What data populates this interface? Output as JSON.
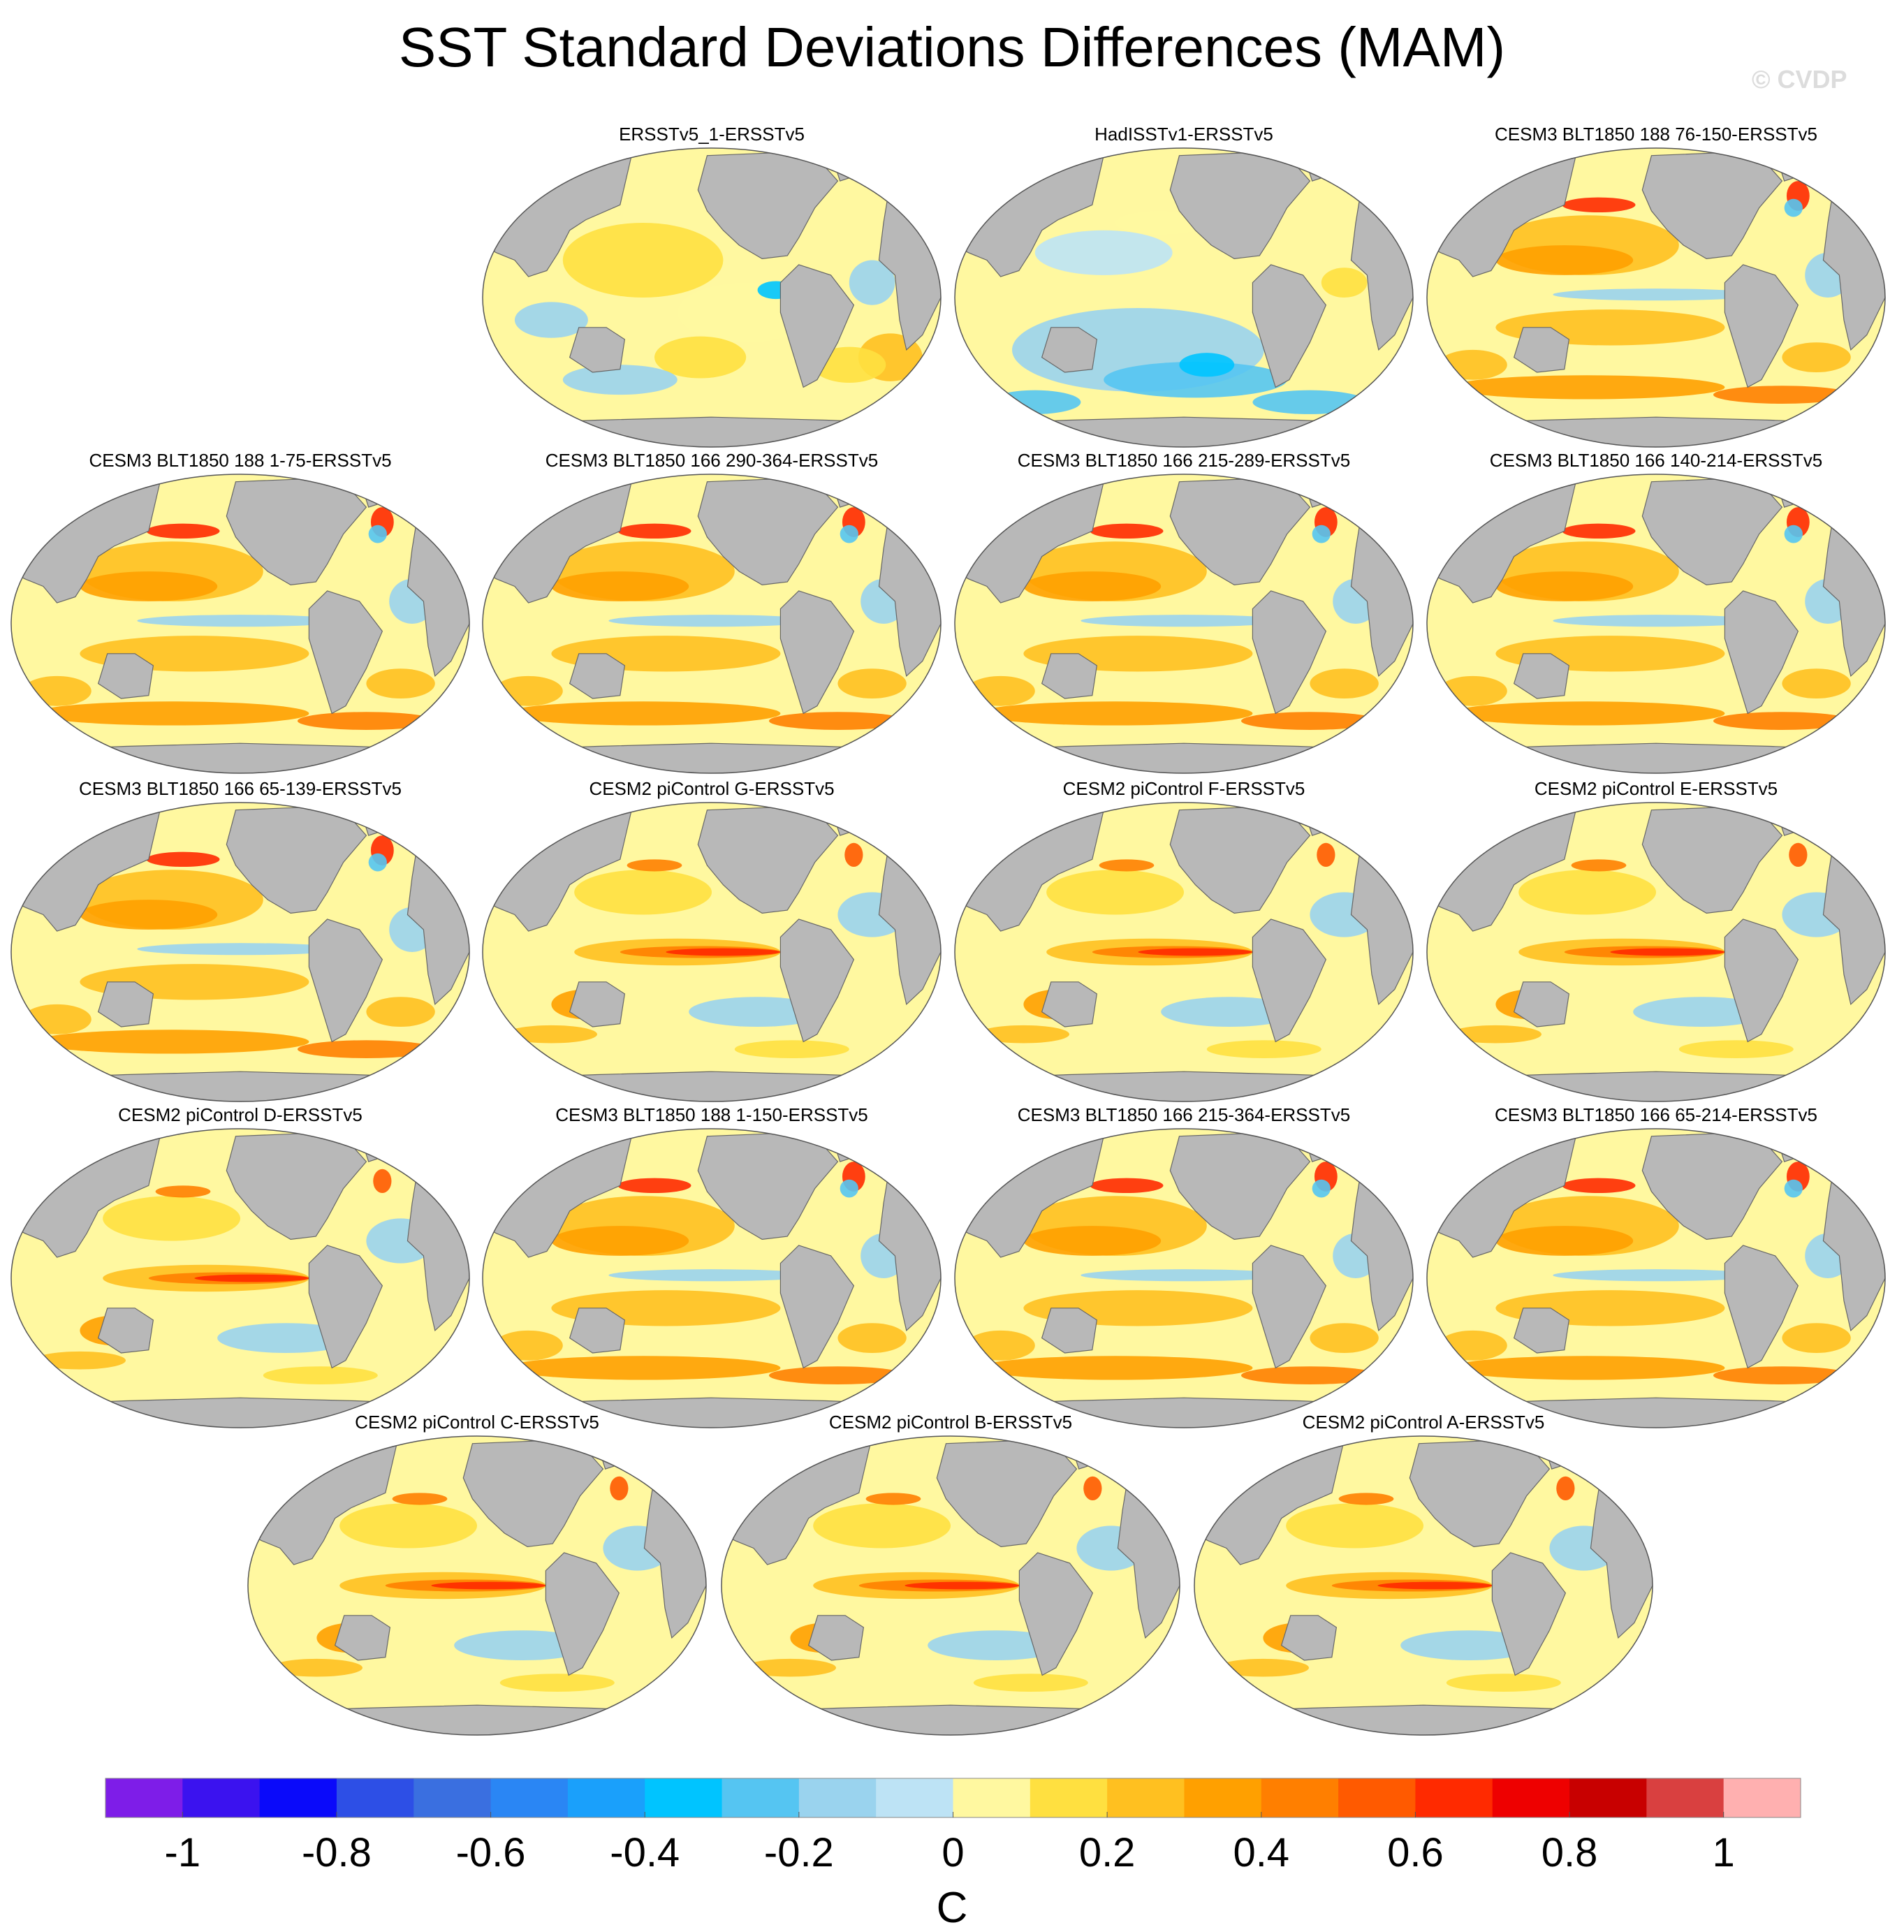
{
  "title": "SST Standard Deviations Differences (MAM)",
  "watermark": "© CVDP",
  "chart_data": {
    "type": "heatmap",
    "title": "SST Standard Deviations Differences (MAM)",
    "projection": "Robinson global map, Pacific-centered",
    "panels": [
      {
        "title": "ERSSTv5_1-ERSSTv5",
        "pattern": "weak"
      },
      {
        "title": "HadISSTv1-ERSSTv5",
        "pattern": "negative"
      },
      {
        "title": "CESM3 BLT1850 188 76-150-ERSSTv5",
        "pattern": "cesm3"
      },
      {
        "title": "CESM3 BLT1850 188 1-75-ERSSTv5",
        "pattern": "cesm3"
      },
      {
        "title": "CESM3 BLT1850 166 290-364-ERSSTv5",
        "pattern": "cesm3"
      },
      {
        "title": "CESM3 BLT1850 166 215-289-ERSSTv5",
        "pattern": "cesm3"
      },
      {
        "title": "CESM3 BLT1850 166 140-214-ERSSTv5",
        "pattern": "cesm3"
      },
      {
        "title": "CESM3 BLT1850 166 65-139-ERSSTv5",
        "pattern": "cesm3"
      },
      {
        "title": "CESM2 piControl G-ERSSTv5",
        "pattern": "cesm2"
      },
      {
        "title": "CESM2 piControl F-ERSSTv5",
        "pattern": "cesm2"
      },
      {
        "title": "CESM2 piControl E-ERSSTv5",
        "pattern": "cesm2"
      },
      {
        "title": "CESM2 piControl D-ERSSTv5",
        "pattern": "cesm2"
      },
      {
        "title": "CESM3 BLT1850 188 1-150-ERSSTv5",
        "pattern": "cesm3"
      },
      {
        "title": "CESM3 BLT1850 166 215-364-ERSSTv5",
        "pattern": "cesm3"
      },
      {
        "title": "CESM3 BLT1850 166 65-214-ERSSTv5",
        "pattern": "cesm3"
      },
      {
        "title": "CESM2 piControl C-ERSSTv5",
        "pattern": "cesm2"
      },
      {
        "title": "CESM2 piControl B-ERSSTv5",
        "pattern": "cesm2"
      },
      {
        "title": "CESM2 piControl A-ERSSTv5",
        "pattern": "cesm2"
      }
    ],
    "colorbar": {
      "label": "C",
      "levels": [
        -1,
        -0.9,
        -0.8,
        -0.7,
        -0.6,
        -0.5,
        -0.4,
        -0.3,
        -0.2,
        -0.1,
        0,
        0.1,
        0.2,
        0.3,
        0.4,
        0.5,
        0.6,
        0.7,
        0.8,
        0.9,
        1
      ],
      "tick_labels": [
        "-1",
        "-0.8",
        "-0.6",
        "-0.4",
        "-0.2",
        "0",
        "0.2",
        "0.4",
        "0.6",
        "0.8",
        "1"
      ],
      "colors": [
        "#7e1de8",
        "#3b12ef",
        "#0a0afa",
        "#2d4fe6",
        "#3a6fe0",
        "#2a86f4",
        "#1aa0fb",
        "#00c4ff",
        "#55c5f2",
        "#9ad3ee",
        "#bde3f5",
        "#fff8a0",
        "#ffe040",
        "#ffc020",
        "#ffa000",
        "#ff7f00",
        "#ff5a00",
        "#ff2a00",
        "#ee0000",
        "#c80000",
        "#d94040",
        "#ffb0b0"
      ]
    }
  }
}
